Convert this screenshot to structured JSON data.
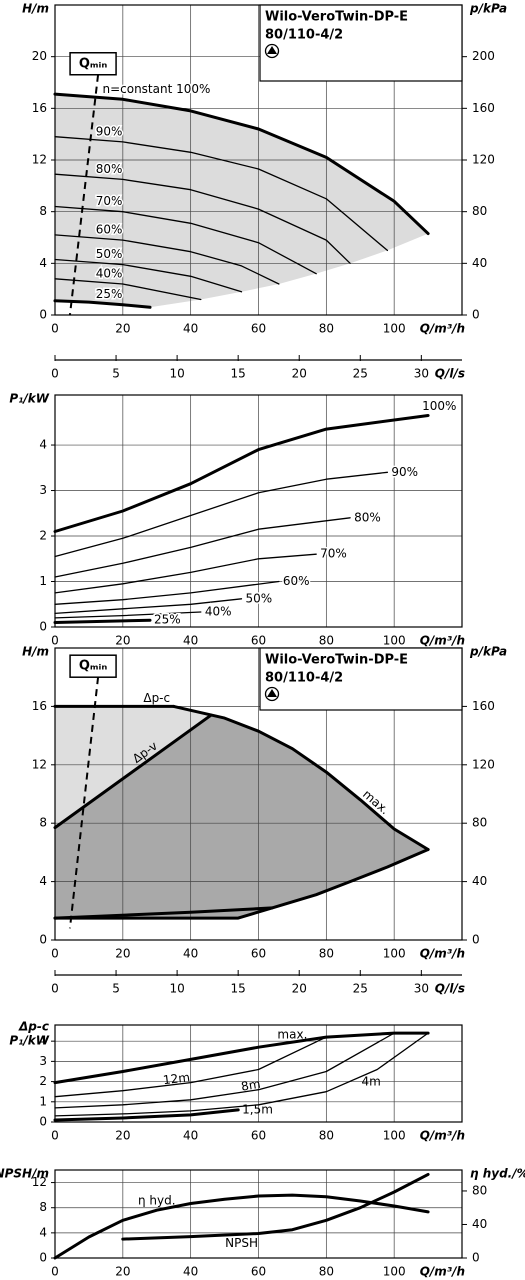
{
  "chart_data": [
    {
      "type": "line",
      "title": "Wilo-VeroTwin-DP-E",
      "subtitle": "80/110-4/2",
      "xlabel": "Q/m³/h",
      "ylabel": "H/m",
      "y2label": "p/kPa",
      "xlim": [
        0,
        120
      ],
      "xticks": [
        0,
        20,
        40,
        60,
        80,
        100
      ],
      "ylim": [
        0,
        24
      ],
      "yticks": [
        0,
        4,
        8,
        12,
        16,
        20
      ],
      "y2lim": [
        0,
        240
      ],
      "y2ticks": [
        0,
        40,
        80,
        120,
        160,
        200
      ],
      "grid": true,
      "fill": "#dcdcdc",
      "qmin": {
        "label": "Qₘᵢₙ",
        "x": [
          12.7,
          4.4
        ],
        "y": [
          18.6,
          0
        ]
      },
      "series": [
        {
          "name": "n=constant 100%",
          "bold": true,
          "x": [
            0,
            20,
            40,
            60,
            80,
            100,
            110
          ],
          "values": [
            17.1,
            16.7,
            15.8,
            14.4,
            12.2,
            8.8,
            6.3
          ]
        },
        {
          "name": "90%",
          "x": [
            0,
            20,
            40,
            60,
            80,
            98
          ],
          "values": [
            13.8,
            13.4,
            12.6,
            11.3,
            9.0,
            5.0
          ]
        },
        {
          "name": "80%",
          "x": [
            0,
            20,
            40,
            60,
            80,
            87
          ],
          "values": [
            10.9,
            10.5,
            9.7,
            8.2,
            5.8,
            4.0
          ]
        },
        {
          "name": "70%",
          "x": [
            0,
            20,
            40,
            60,
            77
          ],
          "values": [
            8.4,
            8.0,
            7.1,
            5.6,
            3.2
          ]
        },
        {
          "name": "60%",
          "x": [
            0,
            20,
            40,
            55,
            66
          ],
          "values": [
            6.2,
            5.8,
            4.9,
            3.8,
            2.4
          ]
        },
        {
          "name": "50%",
          "x": [
            0,
            20,
            40,
            55
          ],
          "values": [
            4.3,
            3.9,
            3.0,
            1.8
          ]
        },
        {
          "name": "40%",
          "x": [
            0,
            20,
            43
          ],
          "values": [
            2.8,
            2.4,
            1.2
          ]
        },
        {
          "name": "25%",
          "bold": true,
          "x": [
            0,
            10,
            20,
            28
          ],
          "values": [
            1.1,
            1.0,
            0.8,
            0.6
          ]
        }
      ]
    },
    {
      "type": "axis",
      "xlabel": "Q/l/s",
      "xlim": [
        0,
        33.33
      ],
      "xticks": [
        0,
        5,
        10,
        15,
        20,
        25,
        30
      ]
    },
    {
      "type": "line",
      "xlabel": "Q/m³/h",
      "ylabel": "P₁/kW",
      "xlim": [
        0,
        120
      ],
      "xticks": [
        0,
        20,
        40,
        60,
        80,
        100
      ],
      "ylim": [
        0,
        5.1
      ],
      "yticks": [
        0,
        1,
        2,
        3,
        4
      ],
      "grid": true,
      "series": [
        {
          "name": "100%",
          "bold": true,
          "x": [
            0,
            20,
            40,
            60,
            80,
            110
          ],
          "values": [
            2.1,
            2.55,
            3.15,
            3.9,
            4.35,
            4.65
          ]
        },
        {
          "name": "90%",
          "x": [
            0,
            20,
            40,
            60,
            80,
            98
          ],
          "values": [
            1.55,
            1.95,
            2.45,
            2.95,
            3.25,
            3.4
          ]
        },
        {
          "name": "80%",
          "x": [
            0,
            20,
            40,
            60,
            87
          ],
          "values": [
            1.1,
            1.4,
            1.75,
            2.15,
            2.4
          ]
        },
        {
          "name": "70%",
          "x": [
            0,
            20,
            40,
            60,
            77
          ],
          "values": [
            0.75,
            0.95,
            1.2,
            1.5,
            1.6
          ]
        },
        {
          "name": "60%",
          "x": [
            0,
            20,
            40,
            66
          ],
          "values": [
            0.5,
            0.6,
            0.75,
            1.0
          ]
        },
        {
          "name": "50%",
          "x": [
            0,
            20,
            40,
            55
          ],
          "values": [
            0.3,
            0.4,
            0.5,
            0.62
          ]
        },
        {
          "name": "40%",
          "x": [
            0,
            20,
            43
          ],
          "values": [
            0.2,
            0.25,
            0.33
          ]
        },
        {
          "name": "25%",
          "bold": true,
          "x": [
            0,
            28
          ],
          "values": [
            0.1,
            0.15
          ]
        }
      ]
    },
    {
      "type": "line",
      "title": "Wilo-VeroTwin-DP-E",
      "subtitle": "80/110-4/2",
      "xlabel": "Q/m³/h",
      "ylabel": "H/m",
      "y2label": "p/kPa",
      "xlim": [
        0,
        120
      ],
      "xticks": [
        0,
        20,
        40,
        60,
        80,
        100
      ],
      "ylim": [
        0,
        20
      ],
      "yticks": [
        0,
        4,
        8,
        12,
        16
      ],
      "y2lim": [
        0,
        200
      ],
      "y2ticks": [
        0,
        40,
        80,
        120,
        160
      ],
      "grid": true,
      "fills": [
        "#dedede",
        "#a9a9a9"
      ],
      "qmin": {
        "label": "Qₘᵢₙ",
        "x": [
          12.7,
          4.4
        ],
        "y": [
          18.0,
          0.8
        ]
      },
      "series": [
        {
          "name": "max.",
          "bold": true,
          "x": [
            35,
            50,
            60,
            70,
            80,
            90,
            100,
            110
          ],
          "values": [
            16,
            15.2,
            14.3,
            13.1,
            11.5,
            9.6,
            7.6,
            6.2
          ]
        },
        {
          "name": "Δp-c",
          "bold": true,
          "x": [
            0,
            35
          ],
          "values": [
            16,
            16
          ]
        },
        {
          "name": "Δp-v",
          "bold": true,
          "x": [
            0,
            46
          ],
          "values": [
            7.7,
            15.4
          ]
        },
        {
          "bold": true,
          "x": [
            0,
            54,
            64,
            77,
            87,
            98,
            110
          ],
          "values": [
            1.5,
            1.5,
            2.2,
            3.1,
            4.0,
            5.0,
            6.2
          ]
        },
        {
          "bold": true,
          "x": [
            0,
            40,
            64
          ],
          "values": [
            1.5,
            1.9,
            2.2
          ]
        }
      ]
    },
    {
      "type": "axis",
      "xlabel": "Q/l/s",
      "xlim": [
        0,
        33.33
      ],
      "xticks": [
        0,
        5,
        10,
        15,
        20,
        25,
        30
      ]
    },
    {
      "type": "line",
      "xlabel": "Q/m³/h",
      "ylabel": [
        "Δp-c",
        "P₁/kW"
      ],
      "xlim": [
        0,
        120
      ],
      "xticks": [
        0,
        20,
        40,
        60,
        80,
        100
      ],
      "ylim": [
        0,
        4.8
      ],
      "yticks": [
        0,
        1,
        2,
        3,
        4
      ],
      "grid": true,
      "series": [
        {
          "name": "max.",
          "bold": true,
          "x": [
            0,
            20,
            40,
            60,
            80,
            100,
            110
          ],
          "values": [
            1.95,
            2.5,
            3.1,
            3.7,
            4.2,
            4.4,
            4.4
          ]
        },
        {
          "name": "12m",
          "x": [
            0,
            20,
            40,
            60,
            80
          ],
          "values": [
            1.25,
            1.55,
            1.95,
            2.6,
            4.2
          ]
        },
        {
          "name": "8m",
          "x": [
            0,
            20,
            40,
            60,
            80,
            100
          ],
          "values": [
            0.7,
            0.85,
            1.1,
            1.6,
            2.5,
            4.4
          ]
        },
        {
          "name": "4m",
          "x": [
            0,
            20,
            40,
            60,
            80,
            95,
            110
          ],
          "values": [
            0.3,
            0.4,
            0.55,
            0.85,
            1.5,
            2.6,
            4.4
          ]
        },
        {
          "name": "1,5m",
          "bold": true,
          "x": [
            0,
            20,
            40,
            54
          ],
          "values": [
            0.1,
            0.2,
            0.35,
            0.6
          ]
        }
      ]
    },
    {
      "type": "line",
      "xlabel": "Q/m³/h",
      "ylabel": "NPSH/m",
      "y2label": "η hyd./%",
      "xlim": [
        0,
        120
      ],
      "xticks": [
        0,
        20,
        40,
        60,
        80,
        100
      ],
      "ylim": [
        0,
        14
      ],
      "yticks": [
        0,
        4,
        8,
        12
      ],
      "y2lim": [
        0,
        105
      ],
      "y2ticks": [
        0,
        40,
        80
      ],
      "grid": true,
      "series": [
        {
          "name": "η hyd.",
          "axis": "y2",
          "bold": true,
          "x": [
            0,
            10,
            20,
            30,
            40,
            50,
            60,
            70,
            80,
            90,
            100,
            110
          ],
          "values": [
            0,
            25,
            45,
            57,
            65,
            70,
            74,
            75,
            73,
            68,
            62,
            55
          ]
        },
        {
          "name": "NPSH",
          "bold": true,
          "x": [
            20,
            40,
            60,
            70,
            80,
            90,
            100,
            110
          ],
          "values": [
            3.0,
            3.4,
            3.9,
            4.5,
            6.0,
            8.0,
            10.5,
            13.3
          ]
        }
      ]
    }
  ]
}
